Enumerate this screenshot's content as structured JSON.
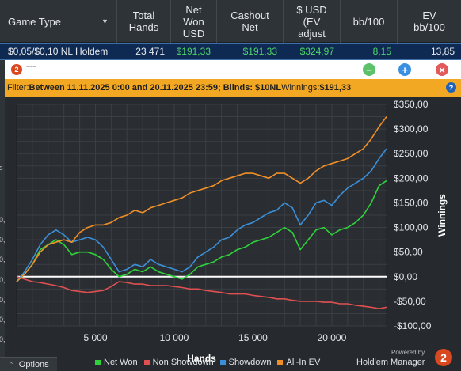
{
  "header": {
    "columns": [
      {
        "label": "Game Type",
        "has_dropdown": true
      },
      {
        "label": "Total\nHands"
      },
      {
        "label": "Net\nWon\nUSD"
      },
      {
        "label": "Cashout\nNet"
      },
      {
        "label": "$ USD\n(EV\nadjust"
      },
      {
        "label": "bb/100"
      },
      {
        "label": "EV\nbb/100"
      }
    ]
  },
  "row": {
    "cells": [
      "$0,05/$0,10 NL Holdem",
      "23 471",
      "$191,33",
      "$191,33",
      "$324,97",
      "8,15",
      "13,85"
    ]
  },
  "popup": {
    "title": "~~~",
    "logo": "2",
    "buttons": {
      "min": "−",
      "add": "+",
      "close": "×"
    }
  },
  "filter": {
    "prefix": "Filter: ",
    "text": "Between 11.11.2025 0:00 and 20.11.2025 23:59; Blinds: $10NL",
    "winnings_label": " Winnings: ",
    "winnings_value": "$191,33",
    "help": "?"
  },
  "chart_data": {
    "type": "line",
    "xlabel": "Hands",
    "ylabel": "Winnings",
    "xlim": [
      0,
      23471
    ],
    "ylim": [
      -100,
      350
    ],
    "x_ticks": [
      5000,
      10000,
      15000,
      20000
    ],
    "x_tick_labels": [
      "5 000",
      "10 000",
      "15 000",
      "20 000"
    ],
    "y_ticks": [
      350,
      300,
      250,
      200,
      150,
      100,
      50,
      0,
      -50,
      -100
    ],
    "y_tick_labels": [
      "$350,00",
      "$300,00",
      "$250,00",
      "$200,00",
      "$150,00",
      "$100,00",
      "$50,00",
      "$0,00",
      "-$50,00",
      "-$100,00"
    ],
    "grid": true,
    "legend_position": "bottom",
    "series": [
      {
        "name": "Net Won",
        "color": "#2fd13b",
        "x": [
          0,
          500,
          1000,
          1500,
          2000,
          2500,
          3000,
          3500,
          4000,
          4500,
          5000,
          5500,
          6000,
          6500,
          7000,
          7500,
          8000,
          8500,
          9000,
          9500,
          10000,
          10500,
          11000,
          11500,
          12000,
          12500,
          13000,
          13500,
          14000,
          14500,
          15000,
          15500,
          16000,
          16500,
          17000,
          17500,
          18000,
          18500,
          19000,
          19500,
          20000,
          20500,
          21000,
          21500,
          22000,
          22500,
          23000,
          23471
        ],
        "y": [
          -10,
          5,
          25,
          55,
          65,
          75,
          65,
          45,
          50,
          50,
          45,
          35,
          15,
          0,
          5,
          15,
          10,
          20,
          10,
          5,
          0,
          -5,
          5,
          20,
          25,
          30,
          40,
          45,
          55,
          60,
          70,
          75,
          80,
          90,
          100,
          90,
          55,
          75,
          95,
          100,
          85,
          95,
          100,
          110,
          125,
          150,
          185,
          195
        ]
      },
      {
        "name": "Non Showdown",
        "color": "#e05050",
        "x": [
          0,
          500,
          1000,
          1500,
          2000,
          2500,
          3000,
          3500,
          4000,
          4500,
          5000,
          5500,
          6000,
          6500,
          7000,
          7500,
          8000,
          8500,
          9000,
          9500,
          10000,
          10500,
          11000,
          11500,
          12000,
          12500,
          13000,
          13500,
          14000,
          14500,
          15000,
          15500,
          16000,
          16500,
          17000,
          17500,
          18000,
          18500,
          19000,
          19500,
          20000,
          20500,
          21000,
          21500,
          22000,
          22500,
          23000,
          23471
        ],
        "y": [
          0,
          -5,
          -10,
          -12,
          -15,
          -18,
          -22,
          -28,
          -30,
          -32,
          -30,
          -28,
          -20,
          -10,
          -12,
          -15,
          -15,
          -18,
          -18,
          -18,
          -20,
          -22,
          -25,
          -25,
          -28,
          -30,
          -32,
          -35,
          -35,
          -35,
          -38,
          -40,
          -42,
          -45,
          -45,
          -48,
          -50,
          -50,
          -50,
          -52,
          -52,
          -55,
          -55,
          -58,
          -60,
          -62,
          -65,
          -62
        ]
      },
      {
        "name": "Showdown",
        "color": "#3b8fd8",
        "x": [
          0,
          500,
          1000,
          1500,
          2000,
          2500,
          3000,
          3500,
          4000,
          4500,
          5000,
          5500,
          6000,
          6500,
          7000,
          7500,
          8000,
          8500,
          9000,
          9500,
          10000,
          10500,
          11000,
          11500,
          12000,
          12500,
          13000,
          13500,
          14000,
          14500,
          15000,
          15500,
          16000,
          16500,
          17000,
          17500,
          18000,
          18500,
          19000,
          19500,
          20000,
          20500,
          21000,
          21500,
          22000,
          22500,
          23000,
          23471
        ],
        "y": [
          -10,
          10,
          35,
          65,
          85,
          95,
          85,
          70,
          75,
          80,
          75,
          60,
          35,
          10,
          15,
          25,
          20,
          35,
          25,
          20,
          15,
          10,
          20,
          40,
          50,
          60,
          75,
          80,
          95,
          105,
          110,
          120,
          130,
          135,
          150,
          140,
          105,
          125,
          150,
          155,
          145,
          165,
          180,
          190,
          200,
          215,
          240,
          260
        ]
      },
      {
        "name": "All-In EV",
        "color": "#f08f28",
        "x": [
          0,
          500,
          1000,
          1500,
          2000,
          2500,
          3000,
          3500,
          4000,
          4500,
          5000,
          5500,
          6000,
          6500,
          7000,
          7500,
          8000,
          8500,
          9000,
          9500,
          10000,
          10500,
          11000,
          11500,
          12000,
          12500,
          13000,
          13500,
          14000,
          14500,
          15000,
          15500,
          16000,
          16500,
          17000,
          17500,
          18000,
          18500,
          19000,
          19500,
          20000,
          20500,
          21000,
          21500,
          22000,
          22500,
          23000,
          23471
        ],
        "y": [
          -10,
          5,
          25,
          50,
          65,
          70,
          75,
          70,
          90,
          100,
          105,
          105,
          110,
          120,
          125,
          135,
          130,
          140,
          145,
          150,
          155,
          160,
          170,
          175,
          180,
          185,
          195,
          200,
          205,
          210,
          210,
          205,
          200,
          210,
          210,
          200,
          190,
          200,
          215,
          225,
          230,
          235,
          240,
          250,
          260,
          280,
          305,
          325
        ]
      }
    ],
    "zero_line_color": "#ffffff"
  },
  "brand": {
    "powered_by": "Powered by",
    "name": "Hold'em Manager",
    "version": "2"
  },
  "left_strip": [
    "s",
    "0,",
    "0,",
    "0,",
    "0,",
    "0,",
    "0,",
    "0,",
    "0,"
  ],
  "options": {
    "label": "Options",
    "caret": "^"
  }
}
